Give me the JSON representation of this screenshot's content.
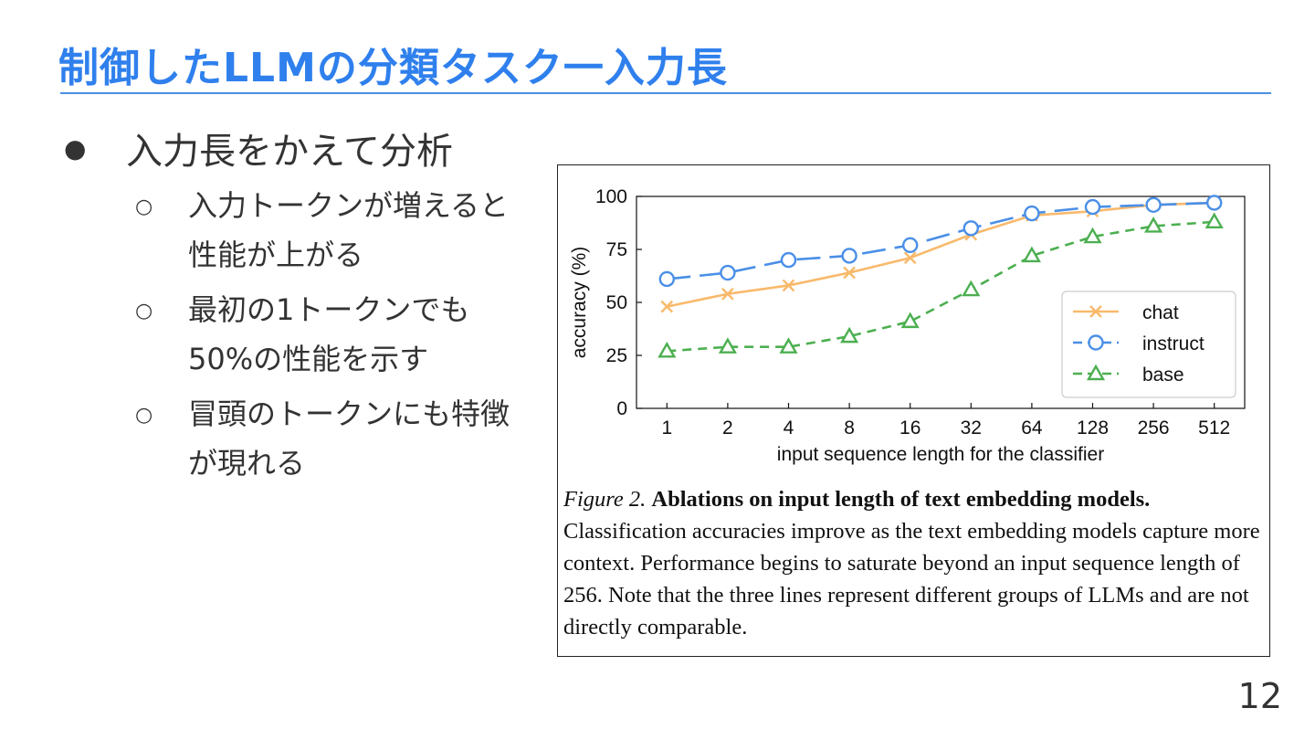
{
  "slide": {
    "title": "制御したLLMの分類タスク一入力長",
    "page_number": "12"
  },
  "bullets": {
    "main": "入力長をかえて分析",
    "sub": [
      "入力トークンが増えると性能が上がる",
      "最初の1トークンでも50%の性能を示す",
      "冒頭のトークンにも特徴が現れる"
    ]
  },
  "figure": {
    "label": "Figure 2.",
    "title": "Ablations on input length of text embedding models.",
    "body": "Classification accuracies improve as the text embedding models capture more context. Performance begins to saturate beyond an input sequence length of 256. Note that the three lines represent different groups of LLMs and are not directly comparable."
  },
  "chart_data": {
    "type": "line",
    "xlabel": "input sequence length for the classifier",
    "ylabel": "accuracy (%)",
    "x": [
      "1",
      "2",
      "4",
      "8",
      "16",
      "32",
      "64",
      "128",
      "256",
      "512"
    ],
    "y_ticks": [
      "0",
      "25",
      "50",
      "75",
      "100"
    ],
    "ylim": [
      0,
      100
    ],
    "grid": false,
    "legend_position": "center-right",
    "series": [
      {
        "name": "chat",
        "color": "#f9b96b",
        "marker": "x",
        "dash": "solid",
        "values": [
          48,
          54,
          58,
          64,
          71,
          82,
          91,
          93,
          96,
          97
        ]
      },
      {
        "name": "instruct",
        "color": "#4a8fe7",
        "marker": "o",
        "dash": "long-dash",
        "values": [
          61,
          64,
          70,
          72,
          77,
          85,
          92,
          95,
          96,
          97
        ]
      },
      {
        "name": "base",
        "color": "#4caf50",
        "marker": "triangle",
        "dash": "dashed",
        "values": [
          27,
          29,
          29,
          34,
          41,
          56,
          72,
          81,
          86,
          88
        ]
      }
    ]
  }
}
